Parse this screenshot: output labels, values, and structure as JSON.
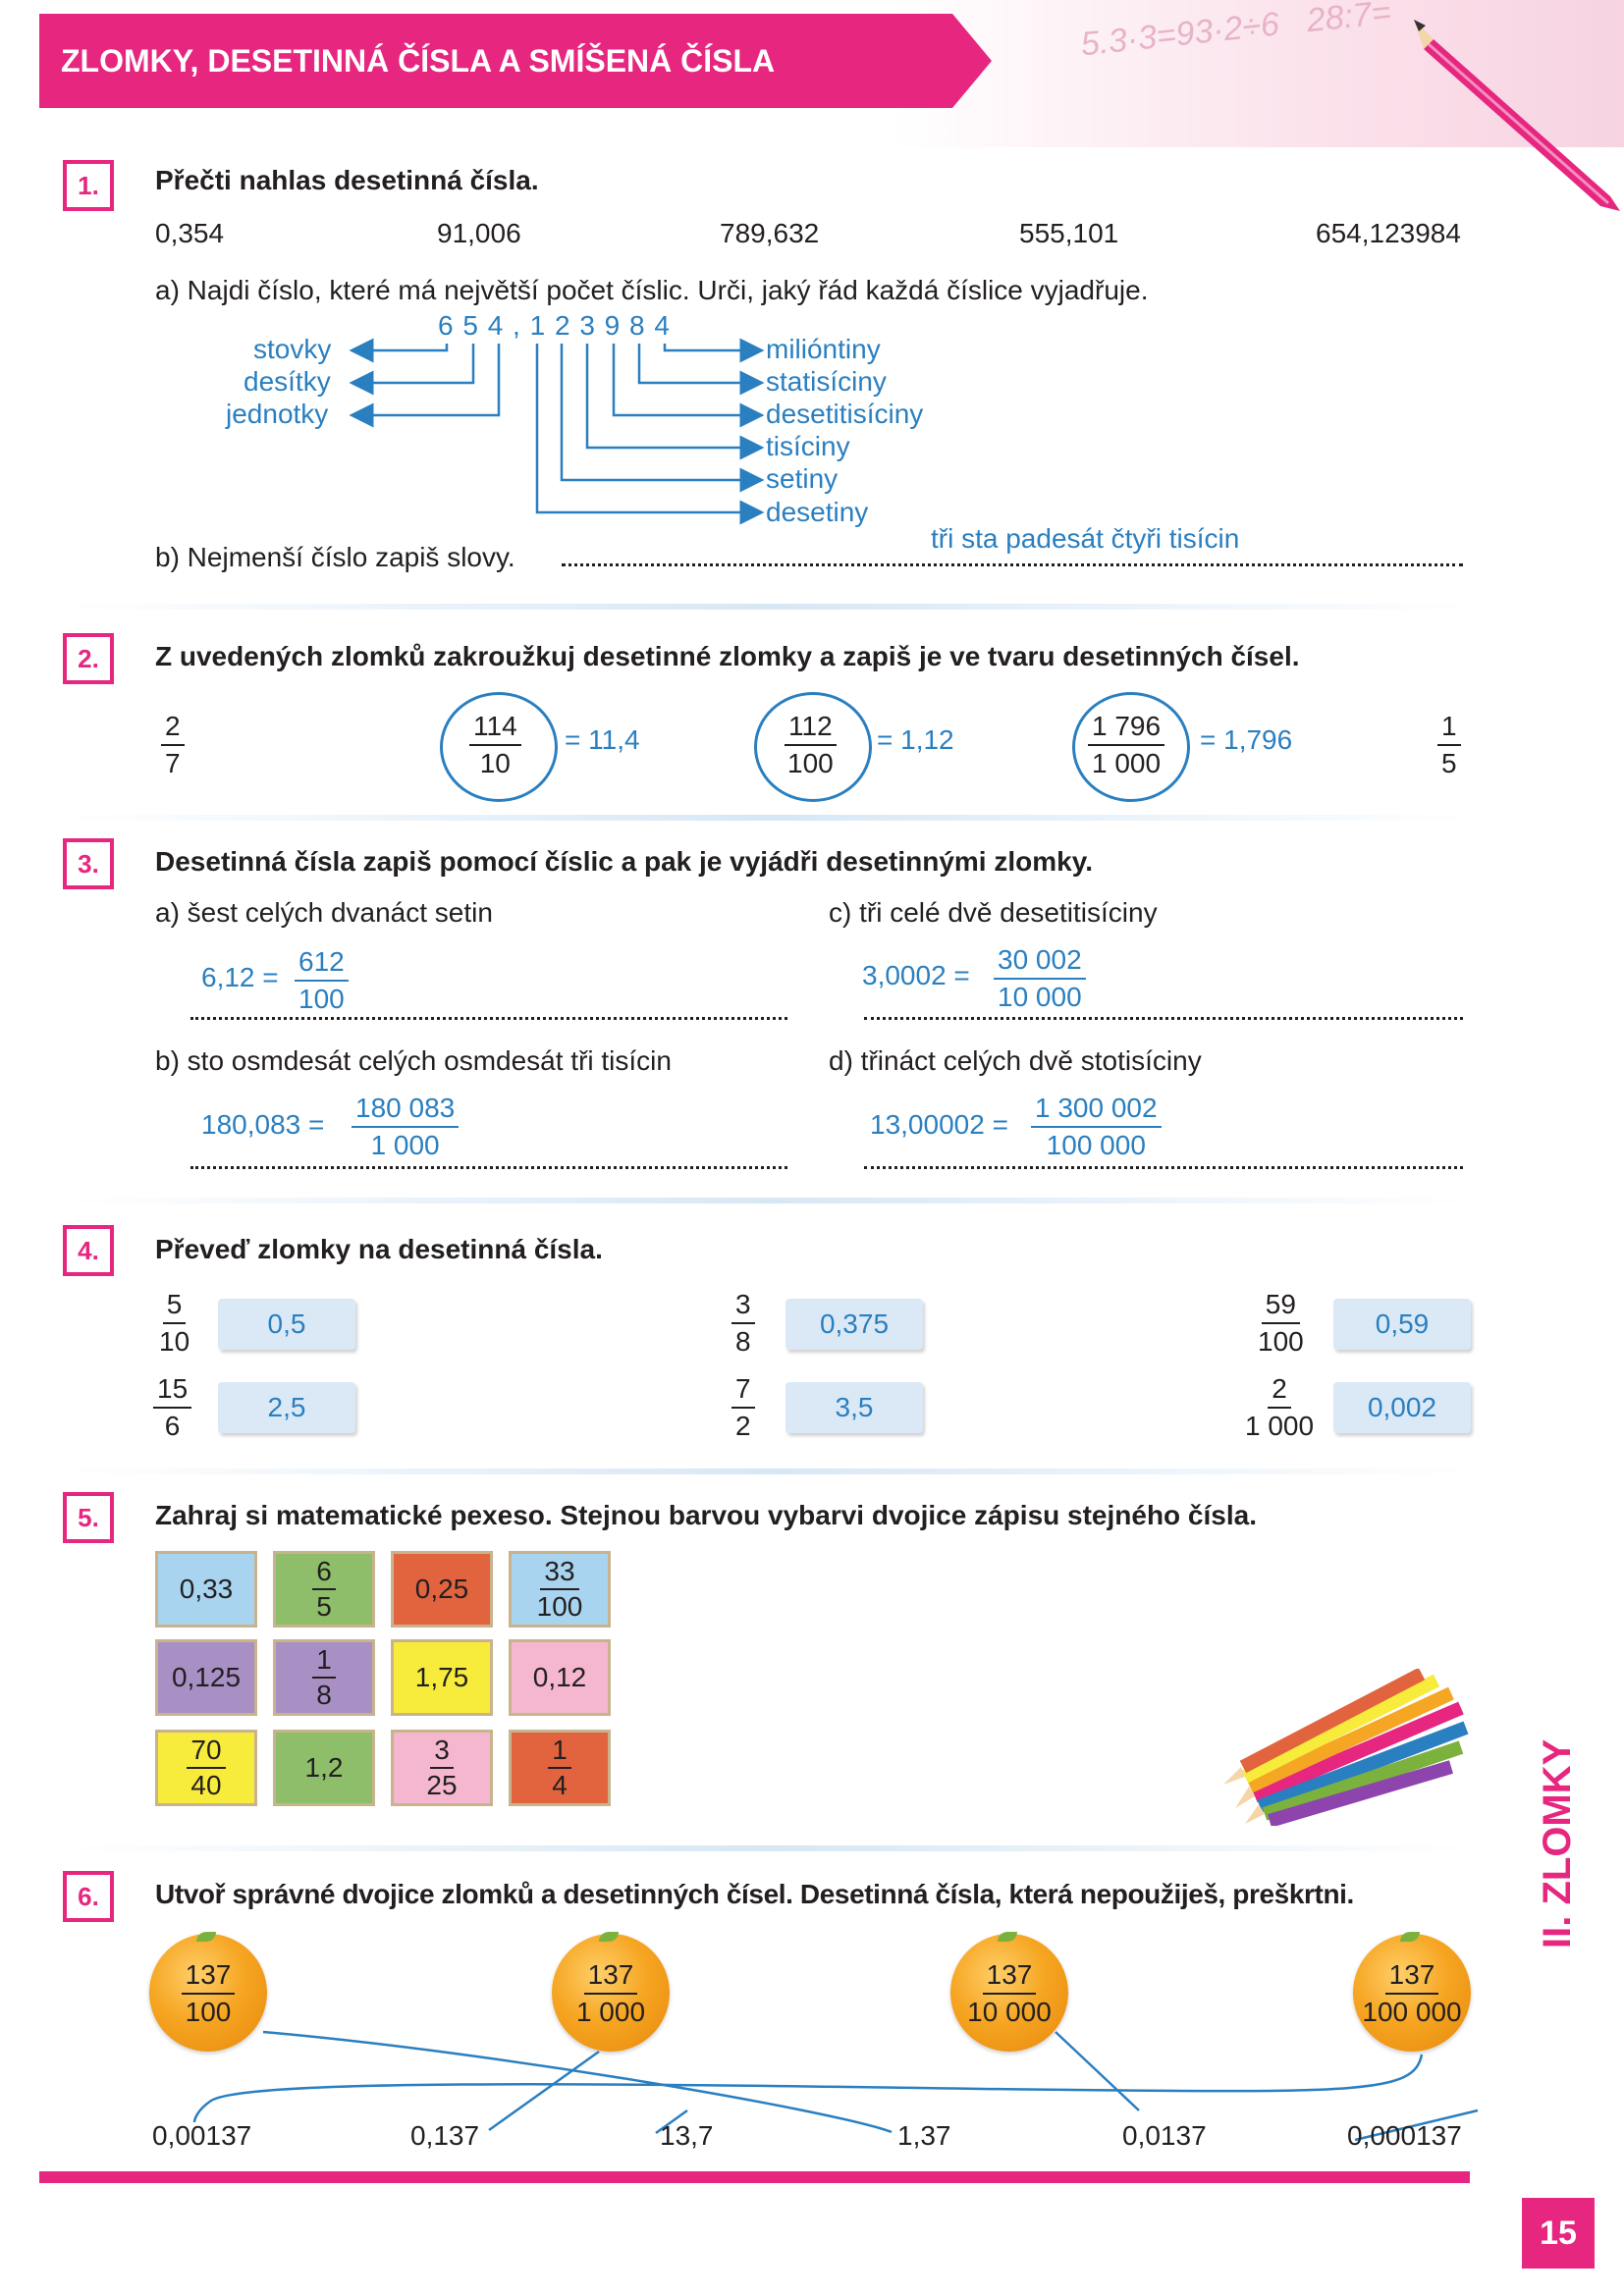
{
  "header": {
    "title": "ZLOMKY, DESETINNÁ ČÍSLA A SMÍŠENÁ ČÍSLA"
  },
  "ex1": {
    "num": "1.",
    "task": "Přečti nahlas desetinná čísla.",
    "numbers": [
      "0,354",
      "91,006",
      "789,632",
      "555,101",
      "654,123984"
    ],
    "a_text": "a) Najdi číslo, které má největší počet číslic. Urči, jaký řád každá číslice vyjadřuje.",
    "digits": "6 5 4 , 1 2 3 9 8 4",
    "left_labels": [
      "stovky",
      "desítky",
      "jednotky"
    ],
    "right_labels": [
      "milióntiny",
      "statisíciny",
      "desetitisíciny",
      "tisíciny",
      "setiny",
      "desetiny"
    ],
    "b_text": "b) Nejmenší číslo zapiš slovy.",
    "b_answer": "tři sta padesát čtyři tisícin"
  },
  "ex2": {
    "num": "2.",
    "task": "Z uvedených zlomků zakroužkuj desetinné zlomky a zapiš je ve tvaru desetinných čísel.",
    "f1": {
      "n": "2",
      "d": "7"
    },
    "f2": {
      "n": "114",
      "d": "10",
      "ans": "= 11,4"
    },
    "f3": {
      "n": "112",
      "d": "100",
      "ans": "= 1,12"
    },
    "f4": {
      "n": "1 796",
      "d": "1 000",
      "ans": "= 1,796"
    },
    "f5": {
      "n": "1",
      "d": "5"
    }
  },
  "ex3": {
    "num": "3.",
    "task": "Desetinná čísla zapiš pomocí číslic a pak je vyjádři desetinnými zlomky.",
    "a": {
      "label": "a) šest celých dvanáct setin",
      "dec": "6,12 =",
      "n": "612",
      "d": "100"
    },
    "b": {
      "label": "b) sto osmdesát celých osmdesát tři tisícin",
      "dec": "180,083 =",
      "n": "180 083",
      "d": "1 000"
    },
    "c": {
      "label": "c) tři celé dvě desetitisíciny",
      "dec": "3,0002 =",
      "n": "30 002",
      "d": "10 000"
    },
    "d": {
      "label": "d) třináct celých dvě stotisíciny",
      "dec": "13,00002 =",
      "n": "1 300 002",
      "d": "100 000"
    }
  },
  "ex4": {
    "num": "4.",
    "task": "Převeď zlomky na desetinná čísla.",
    "items": [
      {
        "n": "5",
        "d": "10",
        "ans": "0,5"
      },
      {
        "n": "3",
        "d": "8",
        "ans": "0,375"
      },
      {
        "n": "59",
        "d": "100",
        "ans": "0,59"
      },
      {
        "n": "15",
        "d": "6",
        "ans": "2,5"
      },
      {
        "n": "7",
        "d": "2",
        "ans": "3,5"
      },
      {
        "n": "2",
        "d": "1 000",
        "ans": "0,002"
      }
    ]
  },
  "ex5": {
    "num": "5.",
    "task": "Zahraj si matematické pexeso. Stejnou barvou vybarvi dvojice zápisu stejného čísla.",
    "tiles": [
      {
        "text": "0,33",
        "color": "#a8d4f0"
      },
      {
        "n": "6",
        "d": "5",
        "color": "#8fbe6a"
      },
      {
        "text": "0,25",
        "color": "#e2643f"
      },
      {
        "n": "33",
        "d": "100",
        "color": "#a8d4f0"
      },
      {
        "text": "0,125",
        "color": "#a88fc4"
      },
      {
        "n": "1",
        "d": "8",
        "color": "#a88fc4"
      },
      {
        "text": "1,75",
        "color": "#f7ec3b"
      },
      {
        "text": "0,12",
        "color": "#f4b7cf"
      },
      {
        "n": "70",
        "d": "40",
        "color": "#f7ec3b"
      },
      {
        "text": "1,2",
        "color": "#8fbe6a"
      },
      {
        "n": "3",
        "d": "25",
        "color": "#f4b7cf"
      },
      {
        "n": "1",
        "d": "4",
        "color": "#e2643f"
      }
    ]
  },
  "ex6": {
    "num": "6.",
    "task": "Utvoř správné dvojice zlomků a desetinných čísel. Desetinná čísla, která nepoužiješ, preškrtni.",
    "oranges": [
      {
        "n": "137",
        "d": "100"
      },
      {
        "n": "137",
        "d": "1 000"
      },
      {
        "n": "137",
        "d": "10 000"
      },
      {
        "n": "137",
        "d": "100 000"
      }
    ],
    "decimals": [
      "0,00137",
      "0,137",
      "13,7",
      "1,37",
      "0,0137",
      "0,000137"
    ]
  },
  "footer": {
    "side_label": "II. ZLOMKY",
    "page": "15"
  },
  "colors": {
    "accent": "#e6267f",
    "answer": "#2a7fc0"
  }
}
